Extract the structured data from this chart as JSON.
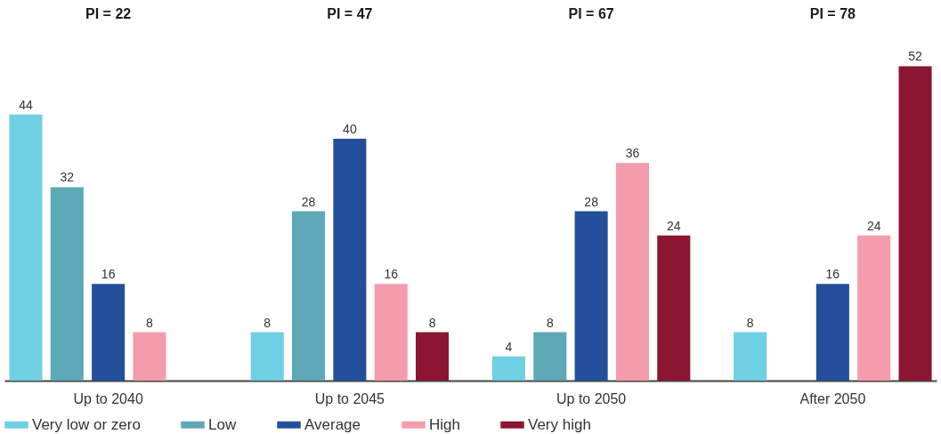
{
  "chart_data": {
    "type": "bar",
    "categories": [
      "Up to 2040",
      "Up to 2045",
      "Up to 2050",
      "After 2050"
    ],
    "series": [
      {
        "name": "Very low or zero",
        "color": "#6fcfe3",
        "values": [
          44,
          8,
          4,
          8
        ]
      },
      {
        "name": "Low",
        "color": "#5da9b5",
        "values": [
          32,
          28,
          8,
          null
        ]
      },
      {
        "name": "Average",
        "color": "#244f9c",
        "values": [
          16,
          40,
          28,
          16
        ]
      },
      {
        "name": "High",
        "color": "#f59cac",
        "values": [
          8,
          16,
          36,
          24
        ]
      },
      {
        "name": "Very high",
        "color": "#8c1532",
        "values": [
          null,
          8,
          24,
          52
        ]
      }
    ],
    "annotations": [
      "PI = 22",
      "PI = 47",
      "PI = 67",
      "PI = 78"
    ],
    "data_labels": true,
    "grid": false,
    "legend": "bottom",
    "tick_labels": "x"
  }
}
